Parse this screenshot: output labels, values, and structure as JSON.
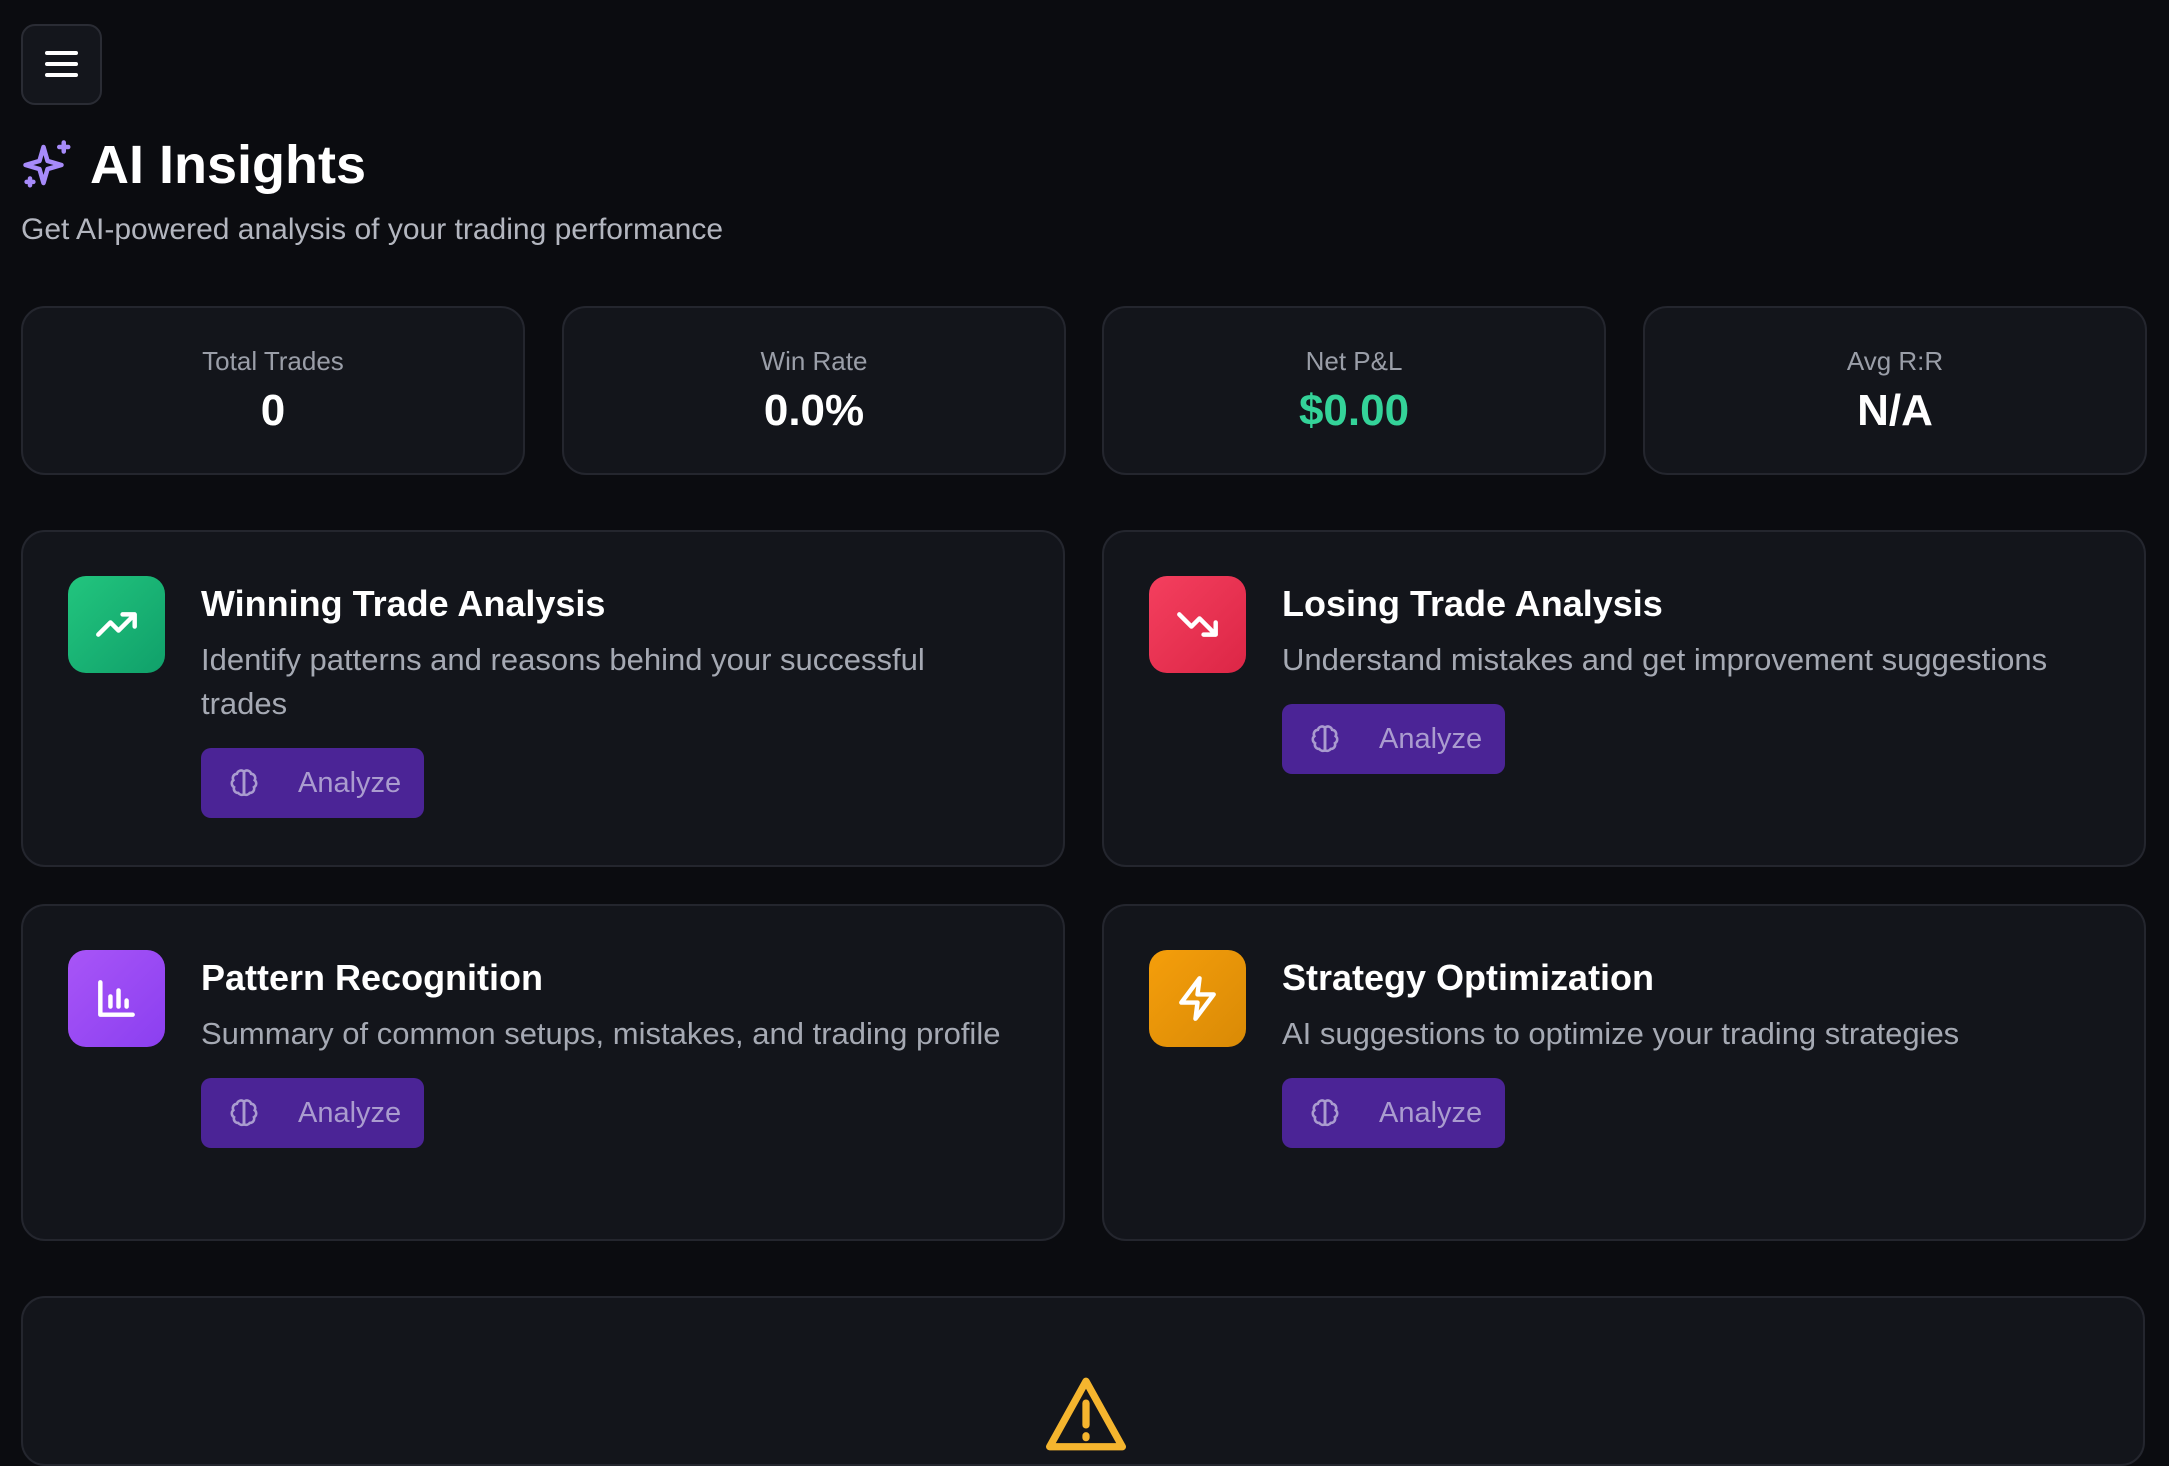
{
  "header": {
    "title": "AI Insights",
    "subtitle": "Get AI-powered analysis of your trading performance"
  },
  "stats": [
    {
      "label": "Total Trades",
      "value": "0"
    },
    {
      "label": "Win Rate",
      "value": "0.0%"
    },
    {
      "label": "Net P&L",
      "value": "$0.00"
    },
    {
      "label": "Avg R:R",
      "value": "N/A"
    }
  ],
  "insights": [
    {
      "title": "Winning Trade Analysis",
      "description": "Identify patterns and reasons behind your successful trades",
      "button": "Analyze"
    },
    {
      "title": "Losing Trade Analysis",
      "description": "Understand mistakes and get improvement suggestions",
      "button": "Analyze"
    },
    {
      "title": "Pattern Recognition",
      "description": "Summary of common setups, mistakes, and trading profile",
      "button": "Analyze"
    },
    {
      "title": "Strategy Optimization",
      "description": "AI suggestions to optimize your trading strategies",
      "button": "Analyze"
    }
  ]
}
